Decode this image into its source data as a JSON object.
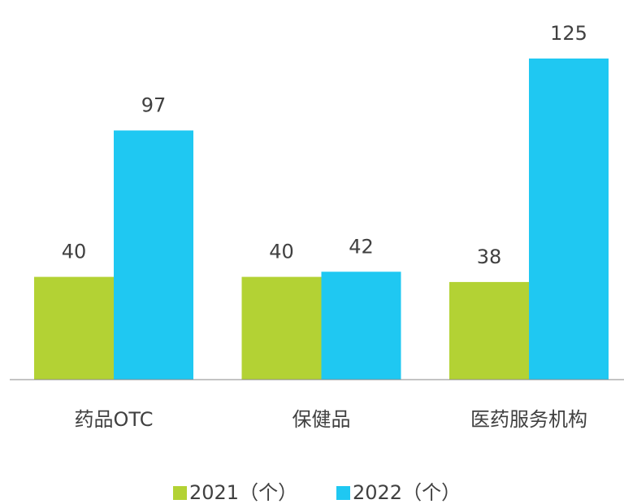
{
  "chart_data": {
    "type": "bar",
    "categories": [
      "药品OTC",
      "保健品",
      "医药服务机构"
    ],
    "series": [
      {
        "name": "2021（个）",
        "color": "#b3d234",
        "values": [
          40,
          40,
          38
        ]
      },
      {
        "name": "2022（个）",
        "color": "#1fc8f2",
        "values": [
          97,
          42,
          125
        ]
      }
    ]
  }
}
